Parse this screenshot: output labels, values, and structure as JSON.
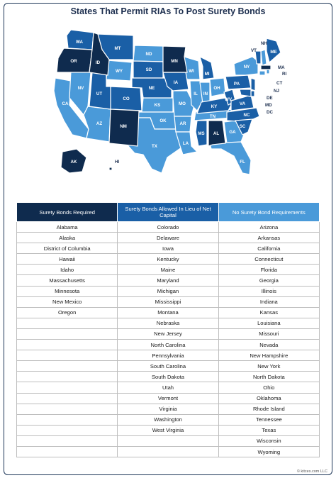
{
  "title": "States That Permit RIAs To Post Surety Bonds",
  "colors": {
    "required": "#0f2b4e",
    "allowed": "#1a5fa6",
    "none": "#4a9ad9",
    "light_label": "#ffffff"
  },
  "legend": {
    "required": "Surety Bonds Required",
    "allowed": "Surety Bonds Allowed In Lieu of Net Capital",
    "none": "No Surety Bond Requirements"
  },
  "map_labels": [
    "WA",
    "OR",
    "ID",
    "MT",
    "ND",
    "MN",
    "WI",
    "MI",
    "NY",
    "ME",
    "VT",
    "NH",
    "MA",
    "RI",
    "CT",
    "NJ",
    "DE",
    "MD",
    "DC",
    "PA",
    "OH",
    "IN",
    "IL",
    "WV",
    "VA",
    "KY",
    "TN",
    "NC",
    "SC",
    "GA",
    "AL",
    "MS",
    "FL",
    "LA",
    "AR",
    "MO",
    "IA",
    "SD",
    "NE",
    "KS",
    "OK",
    "TX",
    "NM",
    "AZ",
    "CO",
    "UT",
    "NV",
    "CA",
    "WY",
    "AK",
    "HI"
  ],
  "table": {
    "columns": [
      [
        "Alabama",
        "Alaska",
        "District of Columbia",
        "Hawaii",
        "Idaho",
        "Massachusetts",
        "Minnesota",
        "New Mexico",
        "Oregon"
      ],
      [
        "Colorado",
        "Delaware",
        "Iowa",
        "Kentucky",
        "Maine",
        "Maryland",
        "Michigan",
        "Mississippi",
        "Montana",
        "Nebraska",
        "New Jersey",
        "North Carolina",
        "Pennsylvania",
        "South Carolina",
        "South Dakota",
        "Utah",
        "Vermont",
        "Virginia",
        "Washington",
        "West Virginia"
      ],
      [
        "Arizona",
        "Arkansas",
        "California",
        "Connecticut",
        "Florida",
        "Georgia",
        "Illinois",
        "Indiana",
        "Kansas",
        "Louisiana",
        "Missouri",
        "Nevada",
        "New Hampshire",
        "New York",
        "North Dakota",
        "Ohio",
        "Oklahoma",
        "Rhode Island",
        "Tennessee",
        "Texas",
        "Wisconsin",
        "Wyoming"
      ]
    ]
  },
  "credit": "© kitces.com LLC"
}
